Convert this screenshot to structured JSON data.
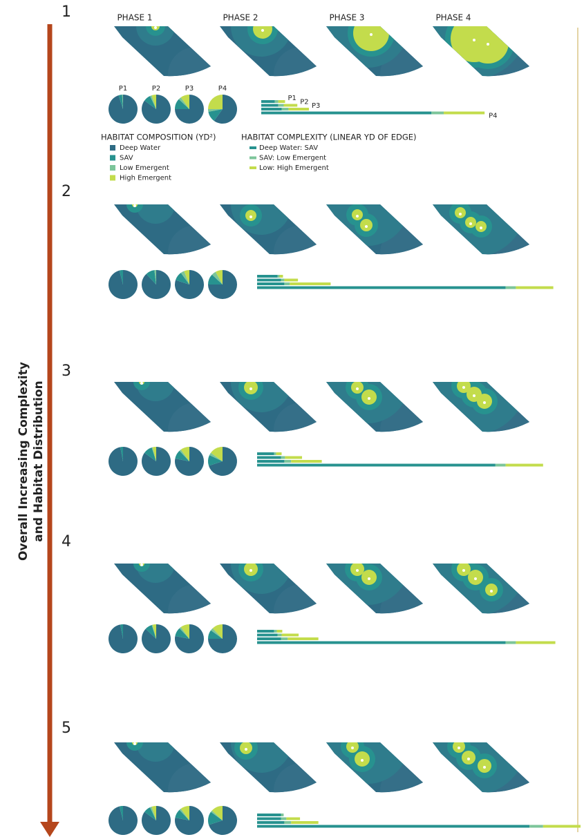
{
  "side_label": [
    "Overall Increasing Complexity",
    "and Habitat Distribution"
  ],
  "phases": [
    "PHASE 1",
    "PHASE 2",
    "PHASE 3",
    "PHASE 4"
  ],
  "composition_legend": {
    "title": "HABITAT COMPOSITION (YD²)",
    "series": [
      {
        "name": "Deep Water",
        "color": "#2e6b84"
      },
      {
        "name": "SAV",
        "color": "#27928f"
      },
      {
        "name": "Low Emergent",
        "color": "#7cc59a"
      },
      {
        "name": "High Emergent",
        "color": "#c3dc4c"
      }
    ]
  },
  "complexity_legend": {
    "title": "HABITAT COMPLEXITY (LINEAR YD OF EDGE)",
    "series": [
      {
        "name": "Deep Water: SAV",
        "color": "#27928f"
      },
      {
        "name": "SAV: Low Emergent",
        "color": "#7cc59a"
      },
      {
        "name": "Low: High Emergent",
        "color": "#c3dc4c"
      }
    ]
  },
  "pie_labels": [
    "P1",
    "P2",
    "P3",
    "P4"
  ],
  "bar_labels": [
    "P1",
    "P2",
    "P3",
    "P4"
  ],
  "rows": [
    {
      "label": "1",
      "composition": [
        [
          95,
          4,
          1,
          0
        ],
        [
          85,
          8,
          2,
          5
        ],
        [
          75,
          12,
          3,
          10
        ],
        [
          60,
          12,
          3,
          25
        ]
      ],
      "complexity": [
        [
          20,
          5,
          10
        ],
        [
          25,
          8,
          20
        ],
        [
          30,
          10,
          30
        ],
        [
          250,
          18,
          60
        ]
      ]
    },
    {
      "label": "2",
      "composition": [
        [
          96,
          4,
          0,
          0
        ],
        [
          88,
          10,
          2,
          0
        ],
        [
          80,
          10,
          4,
          6
        ],
        [
          75,
          12,
          5,
          8
        ]
      ],
      "complexity": [
        [
          30,
          3,
          5
        ],
        [
          35,
          5,
          20
        ],
        [
          40,
          8,
          60
        ],
        [
          365,
          15,
          55
        ]
      ]
    },
    {
      "label": "3",
      "composition": [
        [
          97,
          3,
          0,
          0
        ],
        [
          85,
          10,
          1,
          4
        ],
        [
          78,
          10,
          2,
          10
        ],
        [
          70,
          12,
          3,
          15
        ]
      ],
      "complexity": [
        [
          25,
          3,
          8
        ],
        [
          35,
          6,
          25
        ],
        [
          40,
          10,
          45
        ],
        [
          350,
          15,
          55
        ]
      ]
    },
    {
      "label": "4",
      "composition": [
        [
          97,
          3,
          0,
          0
        ],
        [
          87,
          8,
          1,
          4
        ],
        [
          78,
          10,
          2,
          10
        ],
        [
          75,
          10,
          3,
          12
        ]
      ],
      "complexity": [
        [
          25,
          4,
          8
        ],
        [
          30,
          6,
          25
        ],
        [
          35,
          10,
          45
        ],
        [
          365,
          15,
          58
        ]
      ]
    },
    {
      "label": "5",
      "composition": [
        [
          96,
          4,
          0,
          0
        ],
        [
          85,
          8,
          2,
          5
        ],
        [
          78,
          10,
          2,
          10
        ],
        [
          70,
          15,
          2,
          13
        ]
      ],
      "complexity": [
        [
          35,
          4,
          0
        ],
        [
          35,
          8,
          20
        ],
        [
          40,
          10,
          40
        ],
        [
          400,
          20,
          55
        ]
      ]
    }
  ]
}
